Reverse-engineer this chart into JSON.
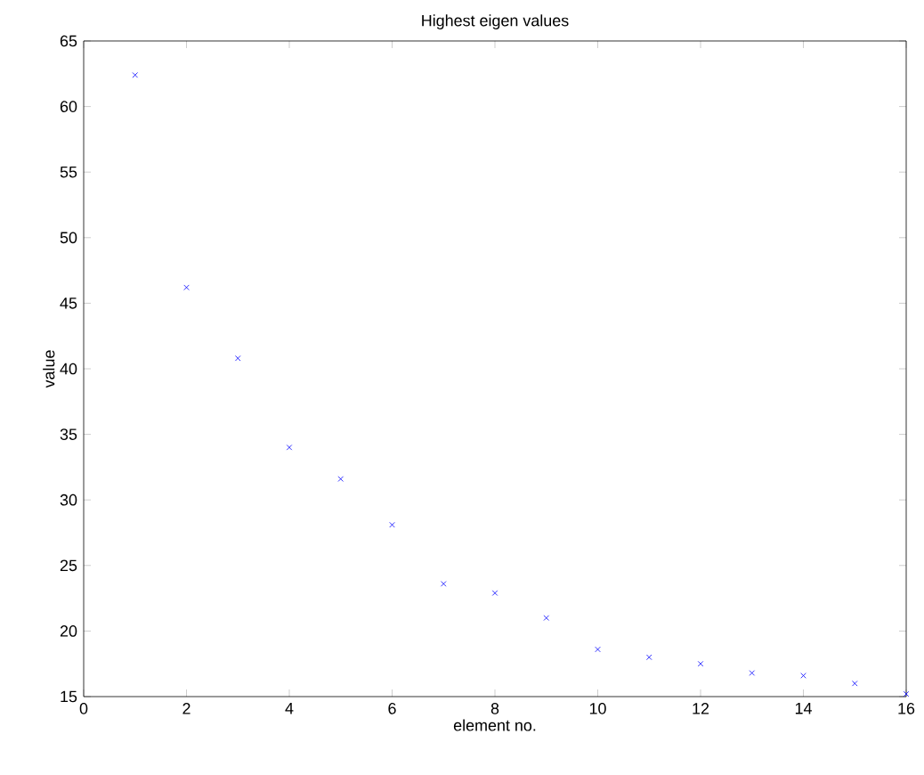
{
  "chart_data": {
    "type": "scatter",
    "title": "Highest eigen values",
    "xlabel": "element no.",
    "ylabel": "value",
    "x": [
      1,
      2,
      3,
      4,
      5,
      6,
      7,
      8,
      9,
      10,
      11,
      12,
      13,
      14,
      15,
      16
    ],
    "values": [
      62.4,
      46.2,
      40.8,
      34.0,
      31.6,
      28.1,
      23.6,
      22.9,
      21.0,
      18.6,
      18.0,
      17.5,
      16.8,
      16.6,
      16.0,
      15.2
    ],
    "color": "#0000ff",
    "marker": "cross",
    "xlim": [
      0,
      16
    ],
    "ylim": [
      15,
      65
    ],
    "xticks": [
      0,
      2,
      4,
      6,
      8,
      10,
      12,
      14,
      16
    ],
    "yticks": [
      15,
      20,
      25,
      30,
      35,
      40,
      45,
      50,
      55,
      60,
      65
    ],
    "grid": false
  }
}
